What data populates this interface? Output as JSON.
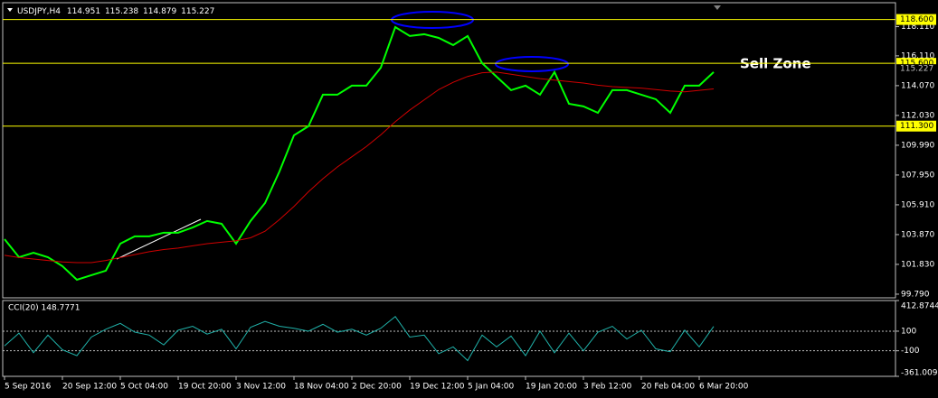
{
  "header": {
    "symbol": "USDJPY,H4",
    "ohlc": [
      114.951,
      115.238,
      114.879,
      115.227
    ]
  },
  "chart_data": [
    {
      "type": "line",
      "annotation": "Sell Zone",
      "categories": [
        "5 Sep 2016",
        null,
        null,
        null,
        "20 Sep 12:00",
        null,
        null,
        null,
        "5 Oct 04:00",
        null,
        null,
        null,
        "19 Oct 20:00",
        null,
        null,
        null,
        "3 Nov 12:00",
        null,
        null,
        null,
        "18 Nov 04:00",
        null,
        null,
        null,
        "2 Dec 20:00",
        null,
        null,
        null,
        "19 Dec 12:00",
        null,
        null,
        null,
        "5 Jan 04:00",
        null,
        null,
        null,
        "19 Jan 20:00",
        null,
        null,
        null,
        "3 Feb 12:00",
        null,
        null,
        null,
        "20 Feb 04:00",
        null,
        null,
        null,
        "6 Mar 20:00",
        null
      ],
      "series": [
        {
          "color": "#00ff00",
          "values": [
            103.56,
            102.32,
            102.63,
            102.32,
            101.71,
            100.78,
            101.09,
            101.4,
            103.25,
            103.75,
            103.75,
            104.0,
            104.0,
            104.36,
            104.8,
            104.61,
            103.25,
            104.8,
            106.03,
            108.2,
            110.67,
            111.29,
            113.45,
            113.45,
            114.07,
            114.07,
            115.3,
            118.08,
            117.47,
            117.59,
            117.34,
            116.85,
            117.47,
            115.61,
            114.68,
            113.76,
            114.07,
            113.45,
            115.0,
            112.83,
            112.65,
            112.21,
            113.76,
            113.76,
            113.45,
            113.14,
            112.21,
            114.07,
            114.07,
            115.0
          ]
        },
        {
          "color": "#d00000",
          "values": [
            102.45,
            102.3,
            102.2,
            102.1,
            102.0,
            101.95,
            101.95,
            102.1,
            102.3,
            102.5,
            102.7,
            102.85,
            102.95,
            103.1,
            103.25,
            103.35,
            103.45,
            103.65,
            104.1,
            104.9,
            105.8,
            106.8,
            107.7,
            108.5,
            109.2,
            109.9,
            110.7,
            111.6,
            112.4,
            113.1,
            113.8,
            114.3,
            114.7,
            114.95,
            115.0,
            114.85,
            114.7,
            114.55,
            114.45,
            114.35,
            114.25,
            114.1,
            114.0,
            113.95,
            113.9,
            113.8,
            113.7,
            113.65,
            113.75,
            113.85
          ]
        }
      ],
      "levels": [
        {
          "value": 118.6,
          "label": "118.600"
        },
        {
          "value": 115.6,
          "label": "115.600"
        },
        {
          "value": 111.3,
          "label": "111.300"
        }
      ],
      "level_color": "#ffff00",
      "ylim": [
        99.54,
        119.75
      ],
      "yticks": [
        {
          "value": 118.11,
          "label": "118.110"
        },
        {
          "value": 116.11,
          "label": "116.110"
        },
        {
          "value": 114.07,
          "label": "114.070"
        },
        {
          "value": 112.03,
          "label": "112.030"
        },
        {
          "value": 109.99,
          "label": "109.990"
        },
        {
          "value": 107.95,
          "label": "107.950"
        },
        {
          "value": 105.91,
          "label": "105.910"
        },
        {
          "value": 103.87,
          "label": "103.870"
        },
        {
          "value": 101.83,
          "label": "101.830"
        },
        {
          "value": 99.79,
          "label": "99.790"
        }
      ]
    },
    {
      "type": "line",
      "title": "CCI(20) 148.7771",
      "series": [
        {
          "color": "#20b2aa",
          "values": [
            -50,
            80,
            -120,
            60,
            -90,
            -150,
            40,
            120,
            180,
            90,
            60,
            -40,
            110,
            150,
            70,
            120,
            -80,
            140,
            200,
            150,
            130,
            100,
            170,
            90,
            120,
            60,
            130,
            250,
            40,
            60,
            -130,
            -60,
            -200,
            60,
            -60,
            50,
            -150,
            100,
            -120,
            80,
            -100,
            90,
            150,
            20,
            110,
            -80,
            -110,
            110,
            -60,
            148.7771
          ]
        }
      ],
      "levels": [
        100,
        -100
      ],
      "ylim": [
        -361.0092,
        412.8744
      ],
      "yticks": [
        412.8744,
        100,
        -100,
        -361.0092
      ]
    }
  ]
}
